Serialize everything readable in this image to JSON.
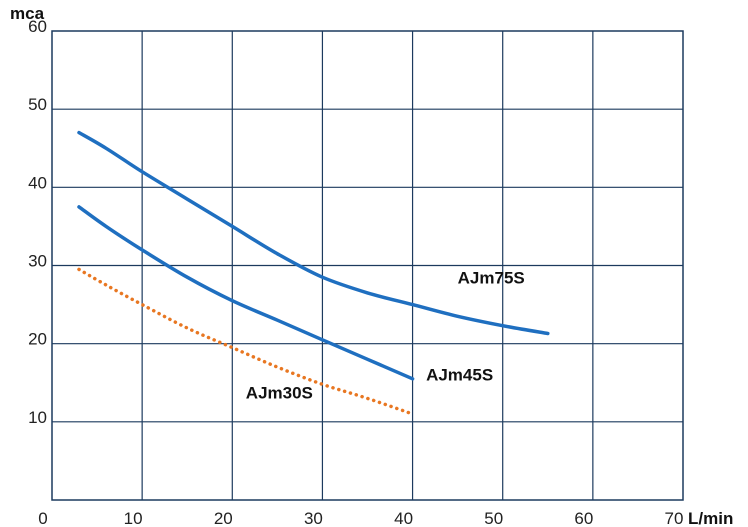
{
  "chart_data": {
    "type": "line",
    "title": "",
    "xlabel": "L/min",
    "ylabel": "mca",
    "xlim": [
      0,
      70
    ],
    "ylim": [
      0,
      60
    ],
    "x_ticks": [
      "0",
      "10",
      "20",
      "30",
      "40",
      "50",
      "60",
      "70"
    ],
    "y_ticks": [
      "10",
      "20",
      "30",
      "40",
      "50",
      "60"
    ],
    "grid": true,
    "series": [
      {
        "name": "AJm75S",
        "color": "#1f6fc0",
        "style": "solid",
        "x": [
          3,
          6,
          10,
          15,
          20,
          25,
          30,
          35,
          40,
          45,
          50,
          55
        ],
        "y": [
          47,
          45,
          42,
          38.5,
          35,
          31.5,
          28.5,
          26.5,
          25,
          23.5,
          22.3,
          21.3
        ]
      },
      {
        "name": "AJm45S",
        "color": "#1f6fc0",
        "style": "solid",
        "x": [
          3,
          6,
          10,
          15,
          20,
          25,
          30,
          35,
          40
        ],
        "y": [
          37.5,
          35,
          32,
          28.5,
          25.5,
          23,
          20.5,
          18,
          15.5
        ]
      },
      {
        "name": "AJm30S",
        "color": "#e87722",
        "style": "dotted",
        "x": [
          3,
          6,
          10,
          15,
          20,
          25,
          30,
          35,
          40
        ],
        "y": [
          29.5,
          27.5,
          25,
          22,
          19.5,
          17,
          14.8,
          13,
          11
        ]
      }
    ],
    "annotations": [
      {
        "text": "AJm75S",
        "x": 45,
        "y": 27.7
      },
      {
        "text": "AJm45S",
        "x": 41.5,
        "y": 15.3
      },
      {
        "text": "AJm30S",
        "x": 21.5,
        "y": 13
      }
    ]
  }
}
